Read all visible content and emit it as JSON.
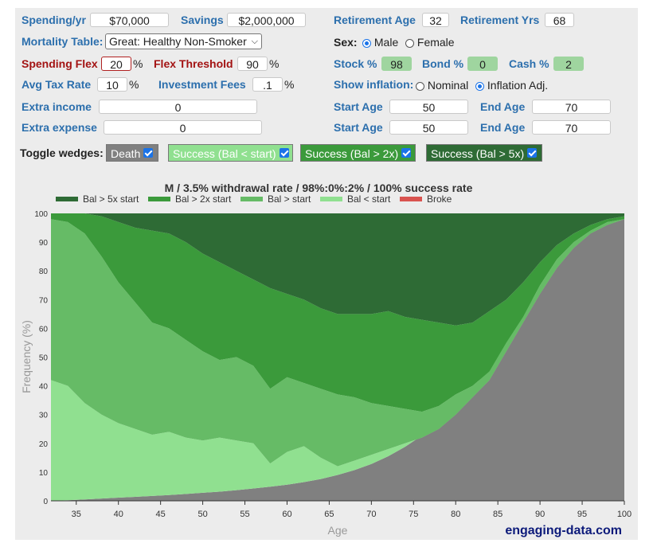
{
  "inputs": {
    "spending_label": "Spending/yr",
    "spending_value": "$70,000",
    "savings_label": "Savings",
    "savings_value": "$2,000,000",
    "retirement_age_label": "Retirement Age",
    "retirement_age_value": "32",
    "retirement_yrs_label": "Retirement Yrs",
    "retirement_yrs_value": "68",
    "mortality_label": "Mortality Table:",
    "mortality_value": "Great: Healthy Non-Smoker",
    "sex_label": "Sex:",
    "sex_male": "Male",
    "sex_female": "Female",
    "spending_flex_label": "Spending Flex",
    "spending_flex_value": "20",
    "flex_threshold_label": "Flex Threshold",
    "flex_threshold_value": "90",
    "stock_label": "Stock %",
    "stock_value": "98",
    "bond_label": "Bond %",
    "bond_value": "0",
    "cash_label": "Cash %",
    "cash_value": "2",
    "tax_label": "Avg Tax Rate",
    "tax_value": "10",
    "fees_label": "Investment Fees",
    "fees_value": ".1",
    "percent_sign": "%",
    "inflation_label": "Show inflation:",
    "inflation_nominal": "Nominal",
    "inflation_adj": "Inflation Adj.",
    "extra_income_label": "Extra income",
    "extra_income_value": "0",
    "extra_expense_label": "Extra expense",
    "extra_expense_value": "0",
    "start_age_label": "Start Age",
    "end_age_label": "End Age",
    "income_start_age": "50",
    "income_end_age": "70",
    "expense_start_age": "50",
    "expense_end_age": "70"
  },
  "toggles": {
    "label": "Toggle wedges:",
    "items": [
      {
        "label": "Death",
        "color": "#808080"
      },
      {
        "label": "Success (Bal < start)",
        "color": "#90e090"
      },
      {
        "label": "Success (Bal > 2x)",
        "color": "#3b9a3b"
      },
      {
        "label": "Success (Bal > 5x)",
        "color": "#2e6b35"
      }
    ]
  },
  "site": "engaging-data.com",
  "chart_data": {
    "type": "area",
    "stacked": true,
    "title": "M / 3.5% withdrawal rate / 98%:0%:2% / 100% success rate",
    "xlabel": "Age",
    "ylabel": "Frequency (%)",
    "xlim": [
      32,
      100
    ],
    "ylim": [
      0,
      100
    ],
    "xticks": [
      35,
      40,
      45,
      50,
      55,
      60,
      65,
      70,
      75,
      80,
      85,
      90,
      95,
      100
    ],
    "yticks": [
      0,
      10,
      20,
      30,
      40,
      50,
      60,
      70,
      80,
      90,
      100
    ],
    "legend": [
      "Bal > 5x start",
      "Bal > 2x start",
      "Bal > start",
      "Bal < start",
      "Broke"
    ],
    "legend_colors": [
      "#2e6b35",
      "#3b9a3b",
      "#66bb66",
      "#90e090",
      "#d9534f"
    ],
    "area_colors": {
      "death": "#808080",
      "bal_lt_start": "#90e090",
      "bal_gt_start": "#66bb66",
      "bal_gt_2x": "#3b9a3b",
      "bal_gt_5x": "#2e6b35"
    },
    "x": [
      32,
      34,
      36,
      38,
      40,
      42,
      44,
      46,
      48,
      50,
      52,
      54,
      56,
      58,
      60,
      62,
      64,
      66,
      68,
      70,
      72,
      74,
      76,
      78,
      80,
      82,
      84,
      86,
      88,
      90,
      92,
      94,
      96,
      98,
      100
    ],
    "death_cum": [
      0,
      0.2,
      0.5,
      0.8,
      1.1,
      1.4,
      1.7,
      2.0,
      2.4,
      2.8,
      3.2,
      3.7,
      4.3,
      4.9,
      5.6,
      6.5,
      7.6,
      9.0,
      10.7,
      12.8,
      15.5,
      18.8,
      22.7,
      27.0,
      32.5,
      39.0,
      46.5,
      55.5,
      65.0,
      74.0,
      82.0,
      88.5,
      93.5,
      96.5,
      98.0
    ],
    "bal_lt_start_top": [
      42,
      40,
      34,
      30,
      27,
      25,
      23,
      24,
      22,
      21,
      22,
      21,
      20,
      13,
      17,
      19,
      15,
      12,
      14,
      16,
      18,
      20,
      22,
      25,
      30,
      36,
      42,
      52,
      62,
      72,
      81,
      88,
      93,
      96,
      98
    ],
    "bal_gt_start_top": [
      98,
      97,
      93,
      85,
      76,
      69,
      62,
      60,
      56,
      52,
      49,
      50,
      47,
      39,
      43,
      41,
      39,
      37,
      36,
      34,
      33,
      32,
      31,
      33,
      37,
      40,
      45,
      55,
      64,
      75,
      84,
      90,
      94,
      97,
      98
    ],
    "bal_gt_2x_top": [
      100,
      100,
      100,
      99,
      97,
      95,
      94,
      93,
      90,
      86,
      83,
      80,
      77,
      74,
      72,
      70,
      67,
      65,
      65,
      65,
      66,
      64,
      63,
      62,
      61,
      62,
      66,
      70,
      76,
      83,
      89,
      93,
      96,
      98,
      99
    ],
    "bal_gt_5x_top": [
      100,
      100,
      100,
      100,
      100,
      100,
      100,
      100,
      100,
      100,
      100,
      100,
      100,
      100,
      100,
      100,
      100,
      100,
      100,
      100,
      100,
      100,
      100,
      100,
      100,
      100,
      100,
      100,
      100,
      100,
      100,
      100,
      100,
      100,
      100
    ]
  }
}
